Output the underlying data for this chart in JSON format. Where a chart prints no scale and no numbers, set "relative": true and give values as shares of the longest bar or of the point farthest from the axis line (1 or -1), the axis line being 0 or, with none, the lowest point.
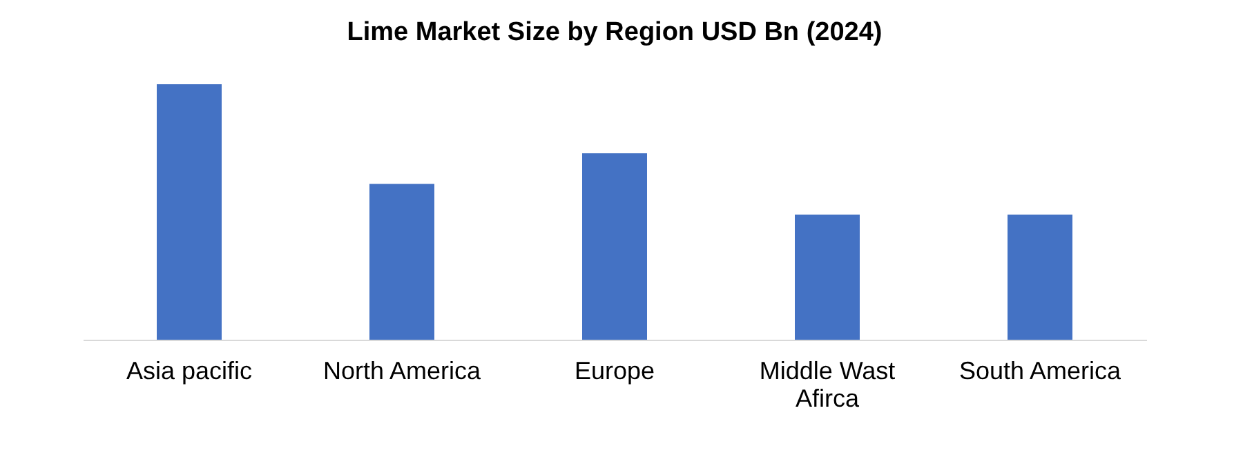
{
  "chart_data": {
    "type": "bar",
    "title": "Lime Market Size by Region USD Bn (2024)",
    "categories": [
      "Asia pacific",
      "North America",
      "Europe",
      "Middle Wast Afirca",
      "South America"
    ],
    "values": [
      1,
      0.61,
      0.73,
      0.49,
      0.49
    ],
    "color": "#4472c4",
    "relative": true,
    "grid": false
  }
}
